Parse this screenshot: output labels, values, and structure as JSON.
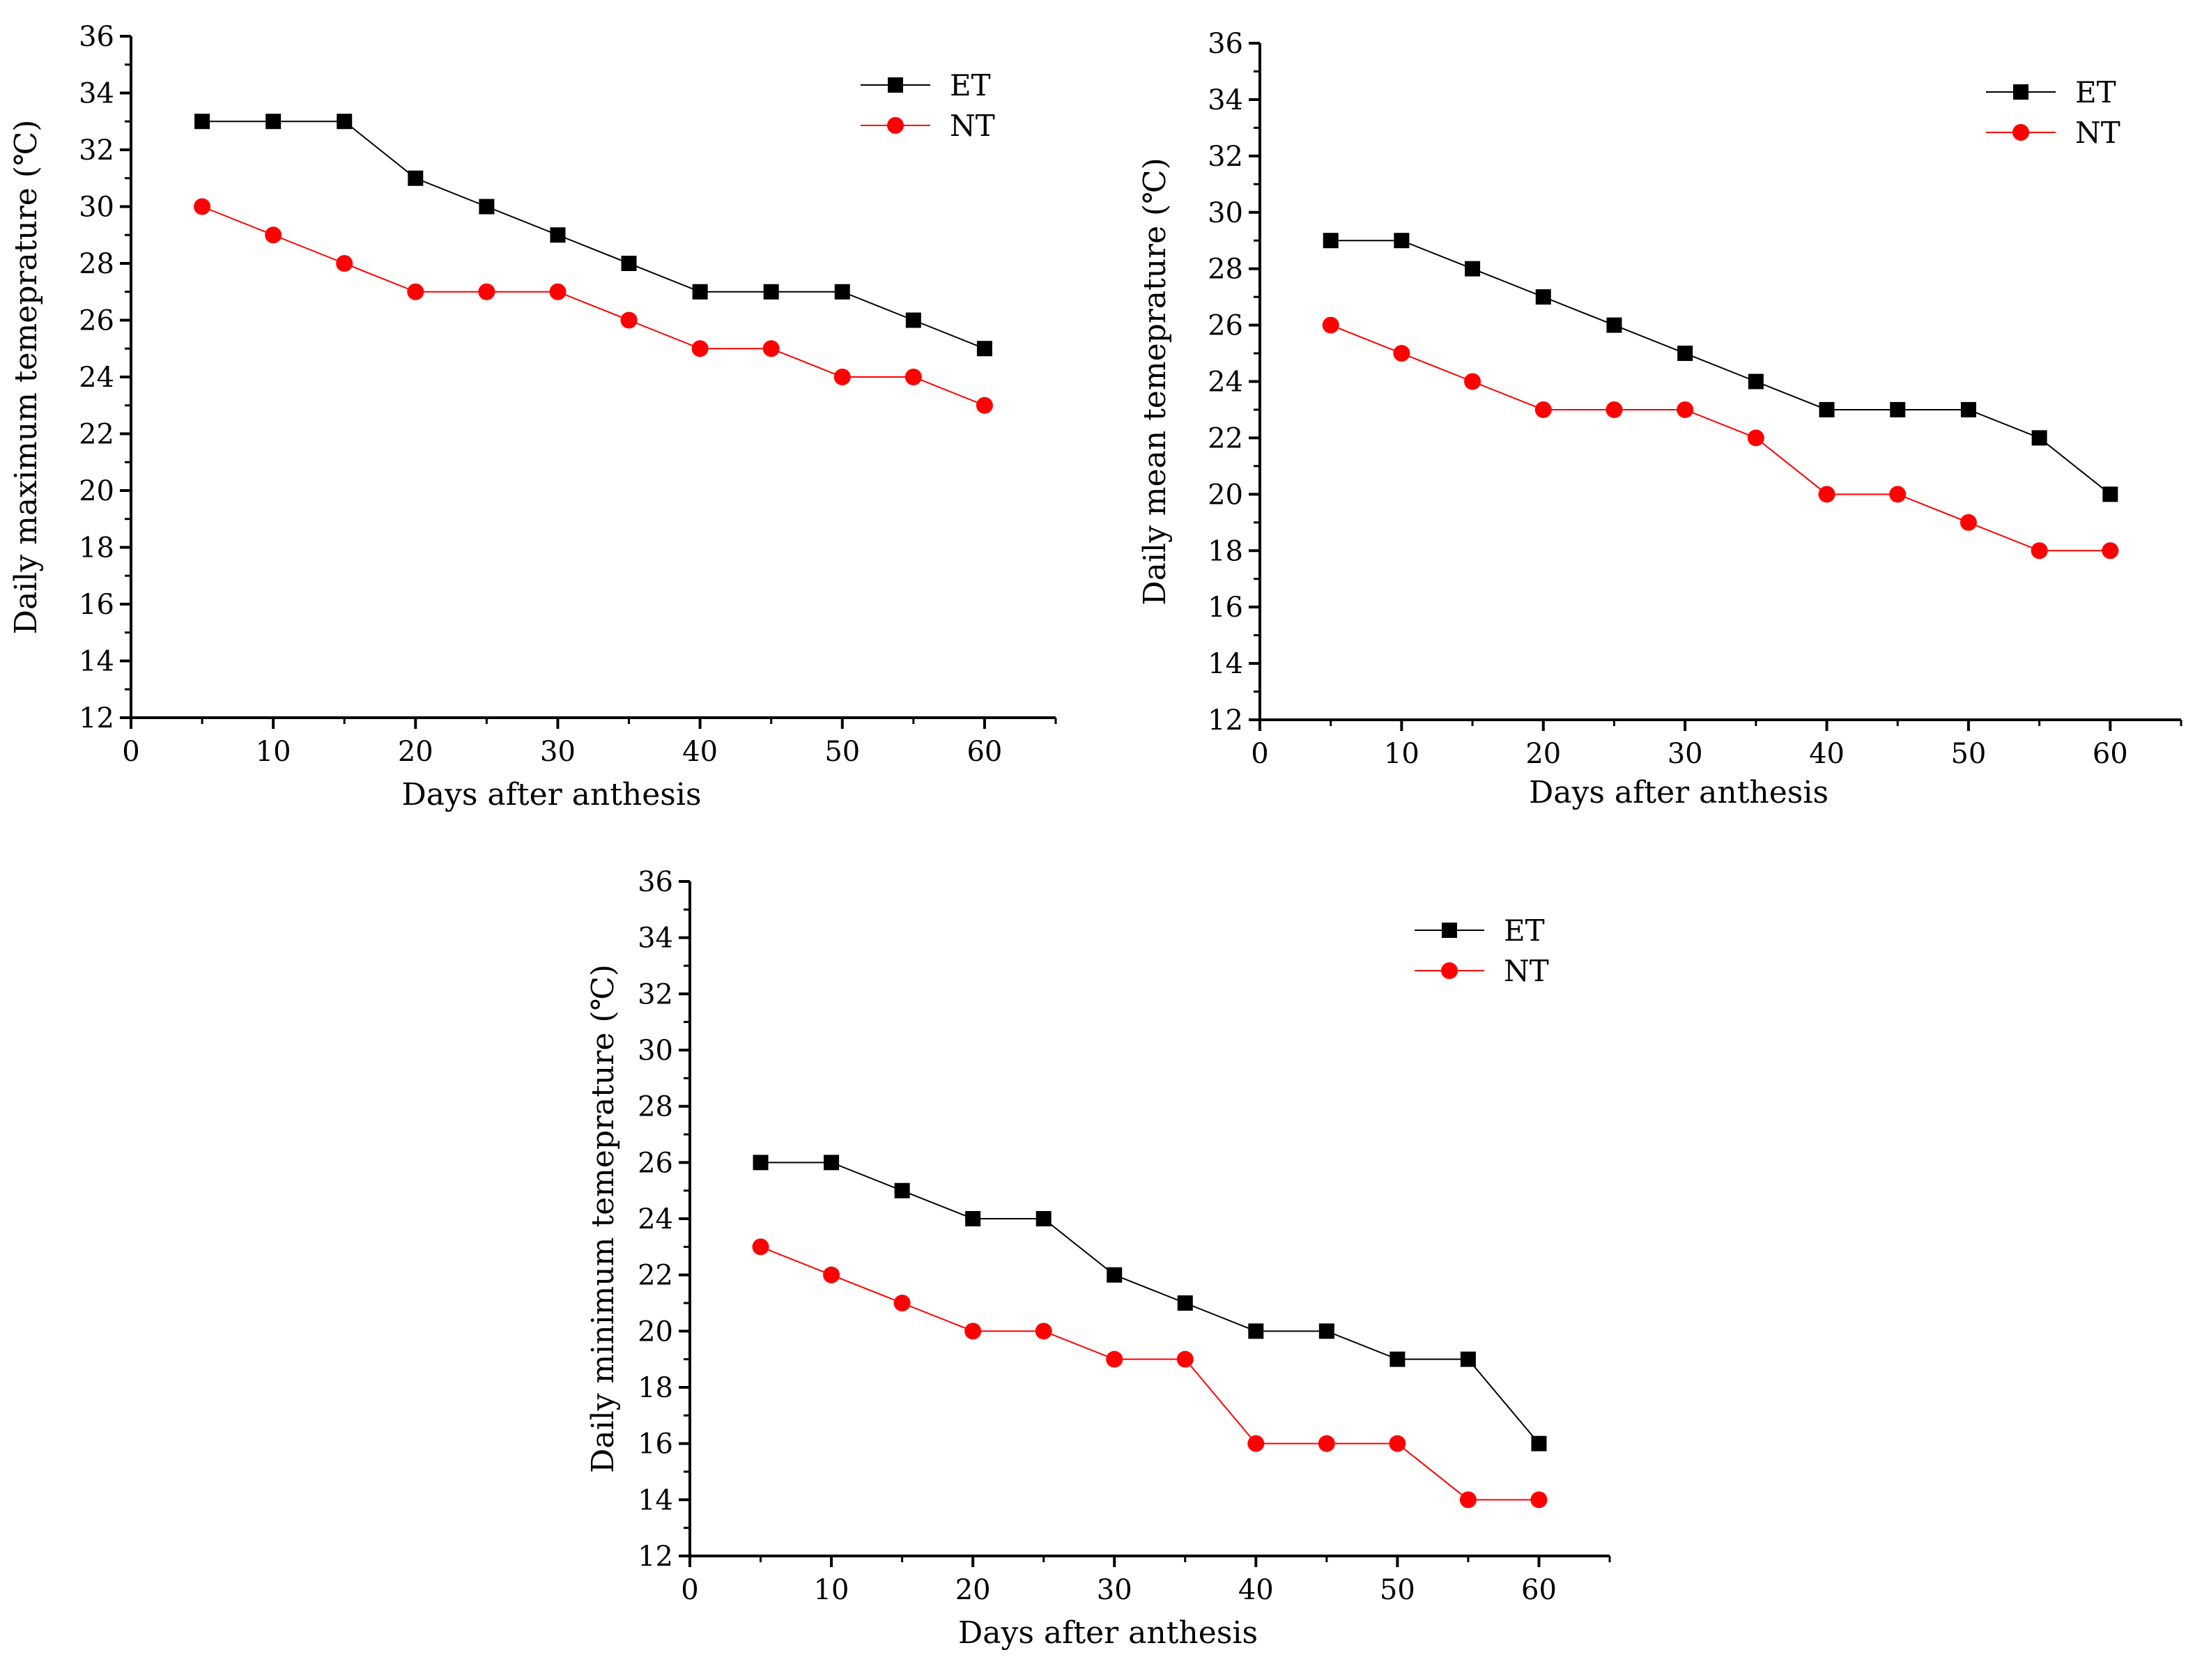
{
  "chart_data": [
    {
      "type": "line",
      "name": "daily-maximum",
      "xlabel": "Days after anthesis",
      "ylabel": "Daily maximum temeprature (℃)",
      "xlim": [
        0,
        65
      ],
      "ylim": [
        12,
        36
      ],
      "xticks": [
        0,
        10,
        20,
        30,
        40,
        50,
        60
      ],
      "yticks": [
        12,
        14,
        16,
        18,
        20,
        22,
        24,
        26,
        28,
        30,
        32,
        34,
        36
      ],
      "x": [
        5,
        10,
        15,
        20,
        25,
        30,
        35,
        40,
        45,
        50,
        55,
        60
      ],
      "series": [
        {
          "name": "ET",
          "color": "#000000",
          "marker": "square",
          "values": [
            33,
            33,
            33,
            31,
            30,
            29,
            28,
            27,
            27,
            27,
            26,
            25
          ]
        },
        {
          "name": "NT",
          "color": "#ff0000",
          "marker": "circle",
          "values": [
            30,
            29,
            28,
            27,
            27,
            27,
            26,
            25,
            25,
            24,
            24,
            23
          ]
        }
      ],
      "legend": "top-right"
    },
    {
      "type": "line",
      "name": "daily-mean",
      "xlabel": "Days after anthesis",
      "ylabel": "Daily mean temeprature (℃)",
      "xlim": [
        0,
        65
      ],
      "ylim": [
        12,
        36
      ],
      "xticks": [
        0,
        10,
        20,
        30,
        40,
        50,
        60
      ],
      "yticks": [
        12,
        14,
        16,
        18,
        20,
        22,
        24,
        26,
        28,
        30,
        32,
        34,
        36
      ],
      "x": [
        5,
        10,
        15,
        20,
        25,
        30,
        35,
        40,
        45,
        50,
        55,
        60
      ],
      "series": [
        {
          "name": "ET",
          "color": "#000000",
          "marker": "square",
          "values": [
            29,
            29,
            28,
            27,
            26,
            25,
            24,
            23,
            23,
            23,
            22,
            20
          ]
        },
        {
          "name": "NT",
          "color": "#ff0000",
          "marker": "circle",
          "values": [
            26,
            25,
            24,
            23,
            23,
            23,
            22,
            20,
            20,
            19,
            18,
            18
          ]
        }
      ],
      "legend": "top-right"
    },
    {
      "type": "line",
      "name": "daily-minimum",
      "xlabel": "Days after anthesis",
      "ylabel": "Daily minimum temeprature (℃)",
      "xlim": [
        0,
        65
      ],
      "ylim": [
        12,
        36
      ],
      "xticks": [
        0,
        10,
        20,
        30,
        40,
        50,
        60
      ],
      "yticks": [
        12,
        14,
        16,
        18,
        20,
        22,
        24,
        26,
        28,
        30,
        32,
        34,
        36
      ],
      "x": [
        5,
        10,
        15,
        20,
        25,
        30,
        35,
        40,
        45,
        50,
        55,
        60
      ],
      "series": [
        {
          "name": "ET",
          "color": "#000000",
          "marker": "square",
          "values": [
            26,
            26,
            25,
            24,
            24,
            22,
            21,
            20,
            20,
            19,
            19,
            16
          ]
        },
        {
          "name": "NT",
          "color": "#ff0000",
          "marker": "circle",
          "values": [
            23,
            22,
            21,
            20,
            20,
            19,
            19,
            16,
            16,
            16,
            14,
            14
          ]
        }
      ],
      "legend": "top-right"
    }
  ]
}
